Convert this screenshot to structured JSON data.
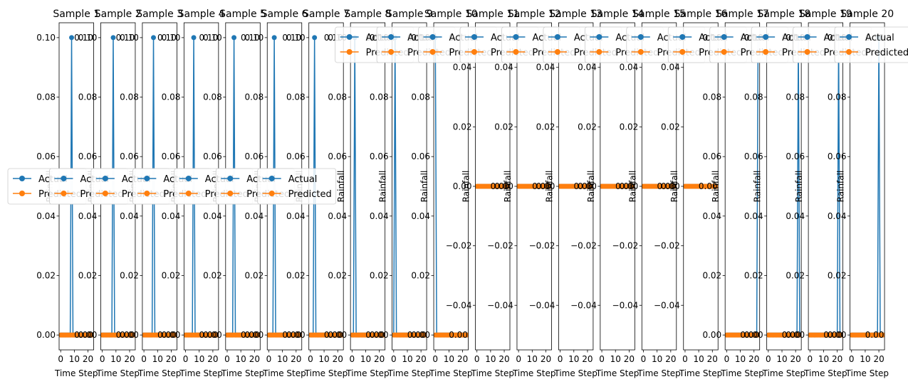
{
  "chart_data": {
    "type": "line",
    "x": [
      0,
      1,
      2,
      3,
      4,
      5,
      6,
      7,
      8,
      9,
      10,
      11,
      12,
      13,
      14,
      15,
      16,
      17,
      18,
      19,
      20,
      21,
      22,
      23
    ],
    "xlabel": "Time Step",
    "ylabel": "Rainfall",
    "xlim": [
      -1.15,
      24.15
    ],
    "xticks": [
      0,
      10,
      20
    ],
    "legend_entries": [
      "Actual",
      "Predicted"
    ],
    "colors": {
      "actual": "#1f77b4",
      "predicted": "#ff7f0e"
    },
    "grid": false,
    "panels": [
      {
        "title": "Sample 1",
        "spike": 8,
        "ylim": [
          -0.005,
          0.105
        ],
        "yticks": [
          "0.00",
          "0.02",
          "0.04",
          "0.06",
          "0.08",
          "0.10"
        ],
        "label_zero": "0.00",
        "label_peak": "0.10",
        "legend": "mid-left"
      },
      {
        "title": "Sample 2",
        "spike": 8,
        "ylim": [
          -0.005,
          0.105
        ],
        "yticks": [
          "0.00",
          "0.02",
          "0.04",
          "0.06",
          "0.08",
          "0.10"
        ],
        "label_zero": "0.00",
        "label_peak": "0.10",
        "legend": "mid-left"
      },
      {
        "title": "Sample 3",
        "spike": 7,
        "ylim": [
          -0.005,
          0.105
        ],
        "yticks": [
          "0.00",
          "0.02",
          "0.04",
          "0.06",
          "0.08",
          "0.10"
        ],
        "label_zero": "0.00",
        "label_peak": "0.10",
        "legend": "mid-left"
      },
      {
        "title": "Sample 4",
        "spike": 6,
        "ylim": [
          -0.005,
          0.105
        ],
        "yticks": [
          "0.00",
          "0.02",
          "0.04",
          "0.06",
          "0.08",
          "0.10"
        ],
        "label_zero": "0.00",
        "label_peak": "0.10",
        "legend": "mid-left"
      },
      {
        "title": "Sample 5",
        "spike": 5,
        "ylim": [
          -0.005,
          0.105
        ],
        "yticks": [
          "0.00",
          "0.02",
          "0.04",
          "0.06",
          "0.08",
          "0.10"
        ],
        "label_zero": "0.00",
        "label_peak": "0.10",
        "legend": "mid-left"
      },
      {
        "title": "Sample 6",
        "spike": 4,
        "ylim": [
          -0.005,
          0.105
        ],
        "yticks": [
          "0.00",
          "0.02",
          "0.04",
          "0.06",
          "0.08",
          "0.10"
        ],
        "label_zero": "0.00",
        "label_peak": "0.10",
        "legend": "mid-left"
      },
      {
        "title": "Sample 7",
        "spike": 3,
        "ylim": [
          -0.005,
          0.105
        ],
        "yticks": [
          "0.00",
          "0.02",
          "0.04",
          "0.06",
          "0.08",
          "0.10"
        ],
        "label_zero": "0.00",
        "label_peak": "0.10",
        "legend": "mid-left"
      },
      {
        "title": "Sample 8",
        "spike": 2,
        "ylim": [
          -0.005,
          0.105
        ],
        "yticks": [
          "0.00",
          "0.02",
          "0.04",
          "0.06",
          "0.08",
          "0.10"
        ],
        "label_zero": "0.00",
        "label_peak": "0.10",
        "legend": "upper-right"
      },
      {
        "title": "Sample 9",
        "spike": 1,
        "ylim": [
          -0.005,
          0.105
        ],
        "yticks": [
          "0.00",
          "0.02",
          "0.04",
          "0.06",
          "0.08",
          "0.10"
        ],
        "label_zero": "0.00",
        "label_peak": "0.10",
        "legend": "upper-right"
      },
      {
        "title": "Sample 10",
        "spike": 0,
        "ylim": [
          -0.005,
          0.105
        ],
        "yticks": [
          "0.00",
          "0.02",
          "0.04",
          "0.06",
          "0.08",
          "0.10"
        ],
        "label_zero": "0.00",
        "label_peak": "0.10",
        "legend": "upper-right"
      },
      {
        "title": "Sample 11",
        "spike": null,
        "ylim": [
          -0.055,
          0.055
        ],
        "yticks": [
          "−0.04",
          "−0.02",
          "0.00",
          "0.02",
          "0.04"
        ],
        "label_zero": "0.00",
        "label_peak": "",
        "legend": "upper-right"
      },
      {
        "title": "Sample 12",
        "spike": null,
        "ylim": [
          -0.055,
          0.055
        ],
        "yticks": [
          "−0.04",
          "−0.02",
          "0.00",
          "0.02",
          "0.04"
        ],
        "label_zero": "0.00",
        "label_peak": "",
        "legend": "upper-right"
      },
      {
        "title": "Sample 13",
        "spike": null,
        "ylim": [
          -0.055,
          0.055
        ],
        "yticks": [
          "−0.04",
          "−0.02",
          "0.00",
          "0.02",
          "0.04"
        ],
        "label_zero": "0.00",
        "label_peak": "",
        "legend": "upper-right"
      },
      {
        "title": "Sample 14",
        "spike": null,
        "ylim": [
          -0.055,
          0.055
        ],
        "yticks": [
          "−0.04",
          "−0.02",
          "0.00",
          "0.02",
          "0.04"
        ],
        "label_zero": "0.00",
        "label_peak": "",
        "legend": "upper-right"
      },
      {
        "title": "Sample 15",
        "spike": null,
        "ylim": [
          -0.055,
          0.055
        ],
        "yticks": [
          "−0.04",
          "−0.02",
          "0.00",
          "0.02",
          "0.04"
        ],
        "label_zero": "0.00",
        "label_peak": "",
        "legend": "upper-right"
      },
      {
        "title": "Sample 16",
        "spike": null,
        "ylim": [
          -0.055,
          0.055
        ],
        "yticks": [
          "−0.04",
          "−0.02",
          "0.00",
          "0.02",
          "0.04"
        ],
        "label_zero": "0.00",
        "label_peak": "",
        "legend": "upper-right"
      },
      {
        "title": "Sample 17",
        "spike": 23,
        "ylim": [
          -0.005,
          0.105
        ],
        "yticks": [
          "0.00",
          "0.02",
          "0.04",
          "0.06",
          "0.08",
          "0.10"
        ],
        "label_zero": "0.00",
        "label_peak": "0.10",
        "legend": "upper-right"
      },
      {
        "title": "Sample 18",
        "spike": 22,
        "ylim": [
          -0.005,
          0.105
        ],
        "yticks": [
          "0.00",
          "0.02",
          "0.04",
          "0.06",
          "0.08",
          "0.10"
        ],
        "label_zero": "0.00",
        "label_peak": "0.10",
        "legend": "upper-right"
      },
      {
        "title": "Sample 19",
        "spike": 21,
        "ylim": [
          -0.005,
          0.105
        ],
        "yticks": [
          "0.00",
          "0.02",
          "0.04",
          "0.06",
          "0.08",
          "0.10"
        ],
        "label_zero": "0.00",
        "label_peak": "0.10",
        "legend": "upper-right"
      },
      {
        "title": "Sample 20",
        "spike": 20,
        "ylim": [
          -0.005,
          0.105
        ],
        "yticks": [
          "0.00",
          "0.02",
          "0.04",
          "0.06",
          "0.08",
          "0.10"
        ],
        "label_zero": "0.00",
        "label_peak": "0.10",
        "legend": "upper-right"
      }
    ]
  }
}
